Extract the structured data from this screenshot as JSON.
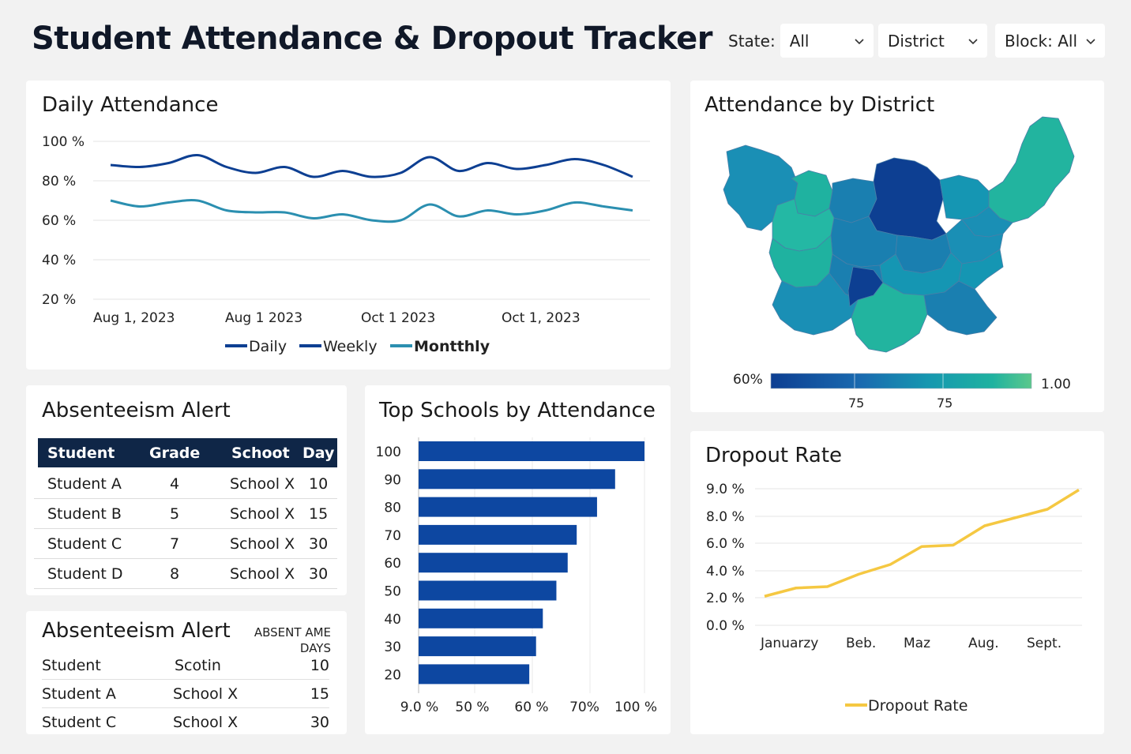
{
  "header": {
    "title": "Student Attendance & Dropout Tracker",
    "filters": {
      "state_label": "State:",
      "state_value": "All",
      "district_value": "District",
      "block_label": "Block:",
      "block_value": "All"
    }
  },
  "daily_attendance": {
    "title": "Daily Attendance",
    "legend": [
      "Daily",
      "Weekly",
      "Montthly"
    ],
    "chart_data": {
      "type": "line",
      "y_ticks": [
        "100 %",
        "80 %",
        "60 %",
        "40 %",
        "20 %"
      ],
      "ylim": [
        20,
        100
      ],
      "x_tick_labels": [
        "Aug 1, 2023",
        "Aug 1 2023",
        "Oct 1  2023",
        "Oct 1, 2023"
      ],
      "series": [
        {
          "name": "Daily",
          "color": "#0d3f92",
          "values": [
            88,
            87,
            89,
            93,
            87,
            84,
            87,
            82,
            85,
            82,
            84,
            92,
            85,
            89,
            86,
            88,
            91,
            88,
            82
          ]
        },
        {
          "name": "Montthly",
          "color": "#2b8fb0",
          "values": [
            70,
            67,
            69,
            70,
            65,
            64,
            64,
            61,
            63,
            60,
            60,
            68,
            62,
            65,
            63,
            65,
            69,
            67,
            65
          ]
        }
      ]
    }
  },
  "district_map": {
    "title": "Attendance by District",
    "scale_min_label": "60%",
    "scale_max_label": "1.00",
    "scale_ticks": [
      "75",
      "75"
    ],
    "colors": [
      "#0d3f92",
      "#1a6bb0",
      "#1697b0",
      "#1fb2a0",
      "#5cc88c"
    ]
  },
  "absenteeism_alert_1": {
    "title": "Absenteeism Alert",
    "columns": [
      "Student",
      "Grade",
      "Schoot",
      "Day"
    ],
    "rows": [
      [
        "Student A",
        "4",
        "School X",
        "10"
      ],
      [
        "Student B",
        "5",
        "School X",
        "15"
      ],
      [
        "Student C",
        "7",
        "School X",
        "30"
      ],
      [
        "Student D",
        "8",
        "School X",
        "30"
      ]
    ]
  },
  "absenteeism_alert_2": {
    "title": "Absenteeism Alert",
    "col3_header": "ABSENT AME DAYS",
    "rows": [
      [
        "Student",
        "Scotin",
        "10"
      ],
      [
        "Student A",
        "School X",
        "15"
      ],
      [
        "Student C",
        "School X",
        "30"
      ]
    ]
  },
  "top_schools": {
    "title": "Top Schools by Attendance",
    "chart_data": {
      "type": "bar",
      "orientation": "horizontal",
      "categories": [
        "100",
        "90",
        "80",
        "70",
        "60",
        "50",
        "40",
        "30",
        "20"
      ],
      "values": [
        100,
        87,
        79,
        70,
        66,
        61,
        55,
        52,
        49
      ],
      "x_tick_labels": [
        "9.0 %",
        "50 %",
        "60 %",
        "70%",
        "100 %"
      ],
      "color": "#0d47a1"
    }
  },
  "dropout_rate": {
    "title": "Dropout Rate",
    "legend": "Dropout Rate",
    "chart_data": {
      "type": "line",
      "y_ticks": [
        "9.0 %",
        "8.0 %",
        "6.0 %",
        "4.0 %",
        "2.0 %",
        "0.0 %"
      ],
      "x_tick_labels": [
        "Januarzy",
        "Beb.",
        "Maz",
        "Aug.",
        "Sept."
      ],
      "color": "#f5c842",
      "values": [
        2.1,
        2.7,
        2.8,
        3.7,
        4.4,
        5.7,
        5.8,
        7.2,
        7.8,
        8.4,
        9.8
      ]
    }
  }
}
